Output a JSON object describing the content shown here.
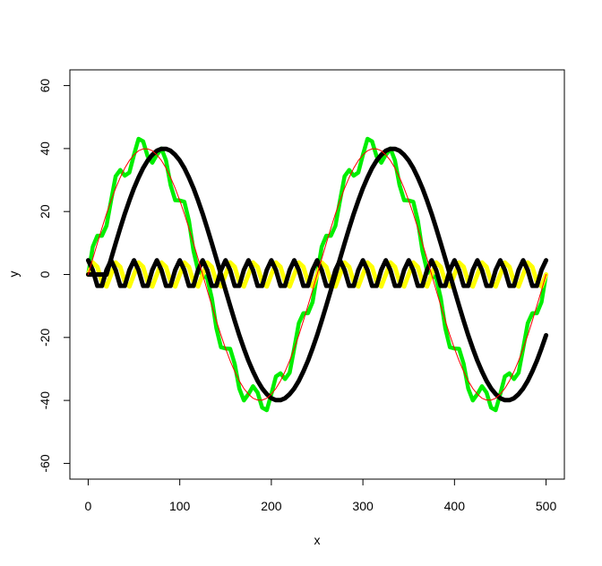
{
  "chart_data": {
    "type": "line",
    "x_label": "x",
    "y_label": "y",
    "xlim": [
      -20,
      520
    ],
    "ylim": [
      -65,
      65
    ],
    "xticks": [
      0,
      100,
      200,
      300,
      400,
      500
    ],
    "yticks": [
      -60,
      -40,
      -20,
      0,
      20,
      40,
      60
    ],
    "x": [
      0,
      5,
      10,
      15,
      20,
      25,
      30,
      35,
      40,
      45,
      50,
      55,
      60,
      65,
      70,
      75,
      80,
      85,
      90,
      95,
      100,
      105,
      110,
      115,
      120,
      125,
      130,
      135,
      140,
      145,
      150,
      155,
      160,
      165,
      170,
      175,
      180,
      185,
      190,
      195,
      200,
      205,
      210,
      215,
      220,
      225,
      230,
      235,
      240,
      245,
      250,
      255,
      260,
      265,
      270,
      275,
      280,
      285,
      290,
      295,
      300,
      305,
      310,
      315,
      320,
      325,
      330,
      335,
      340,
      345,
      350,
      355,
      360,
      365,
      370,
      375,
      380,
      385,
      390,
      395,
      400,
      405,
      410,
      415,
      420,
      425,
      430,
      435,
      440,
      445,
      450,
      455,
      460,
      465,
      470,
      475,
      480,
      485,
      490,
      495,
      500
    ],
    "series": [
      {
        "color": "#00ee00",
        "line_width": 4.5,
        "values": [
          0,
          8.8,
          12.3,
          12.3,
          15.5,
          23.5,
          31.2,
          33.2,
          31.4,
          32.4,
          38.0,
          43.1,
          42.3,
          37.5,
          35.5,
          38.0,
          40.0,
          36.2,
          28.4,
          23.6,
          23.5,
          23.1,
          17.1,
          7.5,
          1.2,
          0,
          -1.2,
          -7.5,
          -17.1,
          -23.1,
          -23.5,
          -23.6,
          -28.4,
          -36.2,
          -40.0,
          -38.0,
          -35.5,
          -37.5,
          -42.3,
          -43.1,
          -38.0,
          -32.4,
          -31.4,
          -33.2,
          -31.2,
          -23.5,
          -15.5,
          -12.3,
          -12.3,
          -8.8,
          0,
          8.8,
          12.3,
          12.3,
          15.5,
          23.5,
          31.2,
          33.2,
          31.4,
          32.4,
          38.0,
          43.1,
          42.3,
          37.5,
          35.5,
          38.0,
          40.0,
          36.2,
          28.4,
          23.6,
          23.5,
          23.1,
          17.1,
          7.5,
          1.2,
          0,
          -1.2,
          -7.5,
          -17.1,
          -23.1,
          -23.5,
          -23.6,
          -28.4,
          -36.2,
          -40.0,
          -38.0,
          -35.5,
          -37.5,
          -42.3,
          -43.1,
          -38.0,
          -32.4,
          -31.4,
          -33.2,
          -31.2,
          -23.5,
          -15.5,
          -12.3,
          -12.3,
          -8.8,
          0
        ]
      },
      {
        "color": "#ffff00",
        "line_width": 5,
        "values": [
          0,
          3.8,
          2.4,
          -2.4,
          -3.8,
          0,
          3.8,
          2.4,
          -2.4,
          -3.8,
          0,
          3.8,
          2.4,
          -2.4,
          -3.8,
          0,
          3.8,
          2.4,
          -2.4,
          -3.8,
          0,
          3.8,
          2.4,
          -2.4,
          -3.8,
          0,
          3.8,
          2.4,
          -2.4,
          -3.8,
          0,
          3.8,
          2.4,
          -2.4,
          -3.8,
          0,
          3.8,
          2.4,
          -2.4,
          -3.8,
          0,
          3.8,
          2.4,
          -2.4,
          -3.8,
          0,
          3.8,
          2.4,
          -2.4,
          -3.8,
          0,
          3.8,
          2.4,
          -2.4,
          -3.8,
          0,
          3.8,
          2.4,
          -2.4,
          -3.8,
          0,
          3.8,
          2.4,
          -2.4,
          -3.8,
          0,
          3.8,
          2.4,
          -2.4,
          -3.8,
          0,
          3.8,
          2.4,
          -2.4,
          -3.8,
          0,
          3.8,
          2.4,
          -2.4,
          -3.8,
          0,
          3.8,
          2.4,
          -2.4,
          -3.8,
          0,
          3.8,
          2.4,
          -2.4,
          -3.8,
          0,
          3.8,
          2.4,
          -2.4,
          -3.8,
          0,
          3.8,
          2.4,
          -2.4,
          -3.8,
          0
        ]
      },
      {
        "color": "#000000",
        "line_width": 5,
        "values": [
          4.5,
          1.4,
          -3.6,
          -3.6,
          1.4,
          4.5,
          1.4,
          -3.6,
          -3.6,
          1.4,
          4.5,
          1.4,
          -3.6,
          -3.6,
          1.4,
          4.5,
          1.4,
          -3.6,
          -3.6,
          1.4,
          4.5,
          1.4,
          -3.6,
          -3.6,
          1.4,
          4.5,
          1.4,
          -3.6,
          -3.6,
          1.4,
          4.5,
          1.4,
          -3.6,
          -3.6,
          1.4,
          4.5,
          1.4,
          -3.6,
          -3.6,
          1.4,
          4.5,
          1.4,
          -3.6,
          -3.6,
          1.4,
          4.5,
          1.4,
          -3.6,
          -3.6,
          1.4,
          4.5,
          1.4,
          -3.6,
          -3.6,
          1.4,
          4.5,
          1.4,
          -3.6,
          -3.6,
          1.4,
          4.5,
          1.4,
          -3.6,
          -3.6,
          1.4,
          4.5,
          1.4,
          -3.6,
          -3.6,
          1.4,
          4.5,
          1.4,
          -3.6,
          -3.6,
          1.4,
          4.5,
          1.4,
          -3.6,
          -3.6,
          1.4,
          4.5,
          1.4,
          -3.6,
          -3.6,
          1.4,
          4.5,
          1.4,
          -3.6,
          -3.6,
          1.4,
          4.5,
          1.4,
          -3.6,
          -3.6,
          1.4,
          4.5,
          1.4,
          -3.6,
          -3.6,
          1.4,
          4.5
        ]
      },
      {
        "color": "#000000",
        "line_width": 5,
        "values": [
          0,
          0,
          0,
          0,
          0,
          5.0,
          9.9,
          14.7,
          19.3,
          23.5,
          27.4,
          30.8,
          33.8,
          36.2,
          38.0,
          39.3,
          39.9,
          39.9,
          39.3,
          38.0,
          36.2,
          33.8,
          30.8,
          27.4,
          23.5,
          19.3,
          14.7,
          9.9,
          5.0,
          0,
          -5.0,
          -9.9,
          -14.7,
          -19.3,
          -23.5,
          -27.4,
          -30.8,
          -33.8,
          -36.2,
          -38.0,
          -39.3,
          -39.9,
          -39.9,
          -39.3,
          -38.0,
          -36.2,
          -33.8,
          -30.8,
          -27.4,
          -23.5,
          -19.3,
          -14.7,
          -9.9,
          -5.0,
          0,
          5.0,
          9.9,
          14.7,
          19.3,
          23.5,
          27.4,
          30.8,
          33.8,
          36.2,
          38.0,
          39.3,
          39.9,
          39.9,
          39.3,
          38.0,
          36.2,
          33.8,
          30.8,
          27.4,
          23.5,
          19.3,
          14.7,
          9.9,
          5.0,
          0,
          -5.0,
          -9.9,
          -14.7,
          -19.3,
          -23.5,
          -27.4,
          -30.8,
          -33.8,
          -36.2,
          -38.0,
          -39.3,
          -39.9,
          -39.9,
          -39.3,
          -38.0,
          -36.2,
          -33.8,
          -30.8,
          -27.4,
          -23.5,
          -19.3
        ]
      },
      {
        "color": "#ff0000",
        "line_width": 1,
        "values": [
          0,
          5.0,
          9.9,
          14.7,
          19.3,
          23.5,
          27.4,
          30.8,
          33.8,
          36.2,
          38.0,
          39.3,
          39.9,
          39.9,
          39.3,
          38.0,
          36.2,
          33.8,
          30.8,
          27.4,
          23.5,
          19.3,
          14.7,
          9.9,
          5.0,
          0,
          -5.0,
          -9.9,
          -14.7,
          -19.3,
          -23.5,
          -27.4,
          -30.8,
          -33.8,
          -36.2,
          -38.0,
          -39.3,
          -39.9,
          -39.9,
          -39.3,
          -38.0,
          -36.2,
          -33.8,
          -30.8,
          -27.4,
          -23.5,
          -19.3,
          -14.7,
          -9.9,
          -5.0,
          0,
          5.0,
          9.9,
          14.7,
          19.3,
          23.5,
          27.4,
          30.8,
          33.8,
          36.2,
          38.0,
          39.3,
          39.9,
          39.9,
          39.3,
          38.0,
          36.2,
          33.8,
          30.8,
          27.4,
          23.5,
          19.3,
          14.7,
          9.9,
          5.0,
          0,
          -5.0,
          -9.9,
          -14.7,
          -19.3,
          -23.5,
          -27.4,
          -30.8,
          -33.8,
          -36.2,
          -38.0,
          -39.3,
          -39.9,
          -39.9,
          -39.3,
          -38.0,
          -36.2,
          -33.8,
          -30.8,
          -27.4,
          -23.5,
          -19.3,
          -14.7,
          -9.9,
          -5.0,
          0
        ]
      }
    ]
  }
}
